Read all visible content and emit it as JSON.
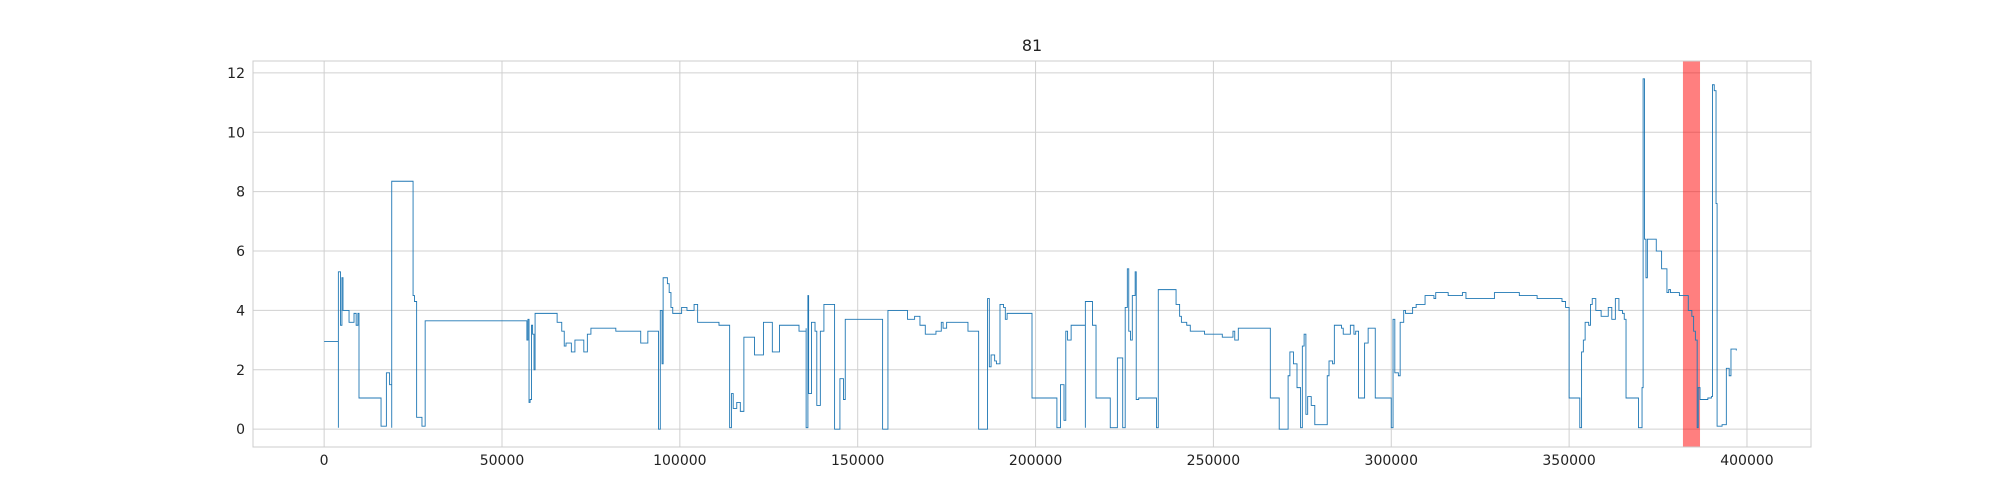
{
  "chart_data": {
    "type": "line",
    "title": "81",
    "xlabel": "",
    "ylabel": "",
    "xlim": [
      -20000,
      418000
    ],
    "ylim": [
      -0.6,
      12.4
    ],
    "xticks": [
      0,
      50000,
      100000,
      150000,
      200000,
      250000,
      300000,
      350000,
      400000
    ],
    "xtick_labels": [
      "0",
      "50000",
      "100000",
      "150000",
      "200000",
      "250000",
      "300000",
      "350000",
      "400000"
    ],
    "yticks": [
      0,
      2,
      4,
      6,
      8,
      10,
      12
    ],
    "ytick_labels": [
      "0",
      "2",
      "4",
      "6",
      "8",
      "10",
      "12"
    ],
    "grid": true,
    "colors": {
      "line": "#1f77b4",
      "highlight": "#ff0000",
      "grid": "#d0d0d0",
      "frame": "#cccccc"
    },
    "highlight_span": {
      "x0": 382000,
      "x1": 386800
    },
    "series": [
      {
        "values_step": [
          [
            0,
            2.95
          ],
          [
            4000,
            2.95
          ],
          [
            4000,
            0.05
          ],
          [
            4000,
            5.3
          ],
          [
            4600,
            3.5
          ],
          [
            5000,
            5.1
          ],
          [
            5300,
            4.0
          ],
          [
            7000,
            4.0
          ],
          [
            7000,
            3.6
          ],
          [
            8400,
            3.6
          ],
          [
            8400,
            3.9
          ],
          [
            9000,
            3.5
          ],
          [
            9500,
            3.9
          ],
          [
            9800,
            1.05
          ],
          [
            16000,
            1.05
          ],
          [
            16000,
            0.1
          ],
          [
            17500,
            0.1
          ],
          [
            17500,
            1.9
          ],
          [
            18400,
            1.5
          ],
          [
            19000,
            0.05
          ],
          [
            19000,
            8.35
          ],
          [
            25000,
            8.35
          ],
          [
            25000,
            4.5
          ],
          [
            25400,
            4.3
          ],
          [
            26000,
            0.4
          ],
          [
            27500,
            0.1
          ],
          [
            28400,
            0.1
          ],
          [
            28400,
            3.65
          ],
          [
            57000,
            3.65
          ],
          [
            57000,
            3.0
          ],
          [
            57300,
            3.7
          ],
          [
            57600,
            0.9
          ],
          [
            57900,
            1.0
          ],
          [
            58300,
            3.5
          ],
          [
            58600,
            3.2
          ],
          [
            59000,
            2.0
          ],
          [
            59300,
            3.9
          ],
          [
            65000,
            3.9
          ],
          [
            65500,
            3.6
          ],
          [
            66800,
            3.3
          ],
          [
            67500,
            2.8
          ],
          [
            68000,
            2.9
          ],
          [
            69000,
            2.9
          ],
          [
            69500,
            2.6
          ],
          [
            70500,
            3.0
          ],
          [
            72500,
            3.0
          ],
          [
            73000,
            2.6
          ],
          [
            74000,
            3.2
          ],
          [
            75000,
            3.4
          ],
          [
            80500,
            3.4
          ],
          [
            82000,
            3.3
          ],
          [
            89000,
            3.3
          ],
          [
            89000,
            2.9
          ],
          [
            91000,
            2.9
          ],
          [
            91000,
            3.3
          ],
          [
            94000,
            3.3
          ],
          [
            94000,
            0.0
          ],
          [
            94500,
            4.0
          ],
          [
            95000,
            2.2
          ],
          [
            95300,
            5.1
          ],
          [
            96500,
            4.9
          ],
          [
            97000,
            4.6
          ],
          [
            97500,
            4.1
          ],
          [
            98000,
            3.9
          ],
          [
            100000,
            3.9
          ],
          [
            100500,
            4.1
          ],
          [
            102000,
            4.0
          ],
          [
            104000,
            4.2
          ],
          [
            105000,
            3.6
          ],
          [
            111000,
            3.5
          ],
          [
            114000,
            3.5
          ],
          [
            114000,
            0.05
          ],
          [
            114500,
            1.2
          ],
          [
            115000,
            0.7
          ],
          [
            116000,
            0.9
          ],
          [
            117000,
            0.9
          ],
          [
            117000,
            0.6
          ],
          [
            118000,
            3.1
          ],
          [
            121000,
            3.1
          ],
          [
            121000,
            2.5
          ],
          [
            123500,
            2.5
          ],
          [
            123500,
            3.6
          ],
          [
            126000,
            3.6
          ],
          [
            126000,
            2.6
          ],
          [
            128000,
            2.6
          ],
          [
            128000,
            3.5
          ],
          [
            133500,
            3.3
          ],
          [
            135500,
            3.4
          ],
          [
            135500,
            0.05
          ],
          [
            136000,
            4.5
          ],
          [
            136200,
            1.2
          ],
          [
            137000,
            3.6
          ],
          [
            138000,
            3.3
          ],
          [
            138500,
            0.8
          ],
          [
            139500,
            3.3
          ],
          [
            140500,
            3.3
          ],
          [
            140500,
            4.2
          ],
          [
            143500,
            4.2
          ],
          [
            143500,
            0.0
          ],
          [
            145000,
            0.0
          ],
          [
            145000,
            1.7
          ],
          [
            146000,
            1.0
          ],
          [
            146500,
            1.0
          ],
          [
            146500,
            3.7
          ],
          [
            157000,
            3.7
          ],
          [
            157000,
            0.0
          ],
          [
            158500,
            0.0
          ],
          [
            158500,
            4.0
          ],
          [
            164000,
            4.0
          ],
          [
            164000,
            3.7
          ],
          [
            166000,
            3.8
          ],
          [
            167500,
            3.5
          ],
          [
            169000,
            3.5
          ],
          [
            169000,
            3.2
          ],
          [
            172000,
            3.3
          ],
          [
            173500,
            3.6
          ],
          [
            174000,
            3.4
          ],
          [
            175000,
            3.6
          ],
          [
            180000,
            3.6
          ],
          [
            181000,
            3.3
          ],
          [
            184000,
            3.3
          ],
          [
            184000,
            0.0
          ],
          [
            186500,
            0.1
          ],
          [
            186500,
            4.4
          ],
          [
            187000,
            2.1
          ],
          [
            187500,
            2.5
          ],
          [
            188500,
            2.3
          ],
          [
            189000,
            2.2
          ],
          [
            190000,
            2.2
          ],
          [
            190000,
            4.2
          ],
          [
            191000,
            4.1
          ],
          [
            191500,
            3.7
          ],
          [
            192000,
            3.9
          ],
          [
            199000,
            3.9
          ],
          [
            199000,
            1.05
          ],
          [
            206000,
            1.05
          ],
          [
            206000,
            0.05
          ],
          [
            207000,
            0.05
          ],
          [
            207000,
            1.5
          ],
          [
            208000,
            0.3
          ],
          [
            208500,
            3.3
          ],
          [
            209000,
            3.0
          ],
          [
            210000,
            3.5
          ],
          [
            214000,
            3.5
          ],
          [
            214000,
            0.05
          ],
          [
            214000,
            4.3
          ],
          [
            216000,
            4.3
          ],
          [
            216000,
            3.5
          ],
          [
            217000,
            3.5
          ],
          [
            217000,
            1.05
          ],
          [
            221000,
            1.05
          ],
          [
            221000,
            0.05
          ],
          [
            223000,
            0.05
          ],
          [
            223000,
            2.4
          ],
          [
            224500,
            2.4
          ],
          [
            224500,
            0.05
          ],
          [
            225200,
            4.1
          ],
          [
            225800,
            5.4
          ],
          [
            226200,
            3.3
          ],
          [
            226700,
            3.0
          ],
          [
            227200,
            4.5
          ],
          [
            228000,
            5.3
          ],
          [
            228300,
            1.0
          ],
          [
            229000,
            1.05
          ],
          [
            234000,
            1.05
          ],
          [
            234000,
            0.05
          ],
          [
            234500,
            4.7
          ],
          [
            239000,
            4.7
          ],
          [
            239500,
            4.2
          ],
          [
            240500,
            3.8
          ],
          [
            241000,
            3.6
          ],
          [
            242500,
            3.5
          ],
          [
            243500,
            3.3
          ],
          [
            247000,
            3.3
          ],
          [
            247500,
            3.2
          ],
          [
            252000,
            3.2
          ],
          [
            252500,
            3.1
          ],
          [
            255000,
            3.1
          ],
          [
            255500,
            3.3
          ],
          [
            256000,
            3.0
          ],
          [
            257000,
            3.4
          ],
          [
            266000,
            3.4
          ],
          [
            266000,
            1.05
          ],
          [
            268500,
            1.05
          ],
          [
            268500,
            0.0
          ],
          [
            271000,
            0.0
          ],
          [
            271000,
            1.8
          ],
          [
            271500,
            2.6
          ],
          [
            272500,
            2.2
          ],
          [
            273500,
            1.4
          ],
          [
            274500,
            1.4
          ],
          [
            274500,
            0.05
          ],
          [
            275000,
            2.8
          ],
          [
            275500,
            3.2
          ],
          [
            276000,
            0.5
          ],
          [
            276500,
            1.1
          ],
          [
            277500,
            0.8
          ],
          [
            278500,
            0.15
          ],
          [
            282000,
            0.15
          ],
          [
            282000,
            1.8
          ],
          [
            282500,
            2.3
          ],
          [
            283500,
            2.2
          ],
          [
            284000,
            3.5
          ],
          [
            286000,
            3.4
          ],
          [
            286500,
            3.2
          ],
          [
            288500,
            3.5
          ],
          [
            289500,
            3.2
          ],
          [
            290000,
            3.3
          ],
          [
            290800,
            1.05
          ],
          [
            292500,
            2.9
          ],
          [
            293500,
            3.4
          ],
          [
            295500,
            3.4
          ],
          [
            295500,
            1.05
          ],
          [
            300000,
            1.05
          ],
          [
            300000,
            0.05
          ],
          [
            300500,
            3.7
          ],
          [
            301000,
            1.9
          ],
          [
            302000,
            1.8
          ],
          [
            302500,
            3.6
          ],
          [
            303500,
            4.0
          ],
          [
            304000,
            3.9
          ],
          [
            306000,
            4.1
          ],
          [
            307000,
            4.2
          ],
          [
            309000,
            4.2
          ],
          [
            309500,
            4.5
          ],
          [
            311000,
            4.5
          ],
          [
            312000,
            4.4
          ],
          [
            312500,
            4.6
          ],
          [
            316000,
            4.5
          ],
          [
            319000,
            4.5
          ],
          [
            320000,
            4.6
          ],
          [
            321000,
            4.4
          ],
          [
            328000,
            4.4
          ],
          [
            329000,
            4.6
          ],
          [
            335000,
            4.6
          ],
          [
            336000,
            4.5
          ],
          [
            340000,
            4.5
          ],
          [
            341000,
            4.4
          ],
          [
            347000,
            4.4
          ],
          [
            348000,
            4.3
          ],
          [
            349000,
            4.1
          ],
          [
            350000,
            4.1
          ],
          [
            350000,
            1.05
          ],
          [
            353000,
            1.05
          ],
          [
            353000,
            0.05
          ],
          [
            353500,
            2.6
          ],
          [
            354000,
            3.0
          ],
          [
            354500,
            3.6
          ],
          [
            355500,
            3.5
          ],
          [
            356000,
            4.2
          ],
          [
            356500,
            4.4
          ],
          [
            357500,
            4.0
          ],
          [
            359000,
            3.8
          ],
          [
            361000,
            4.1
          ],
          [
            362000,
            3.7
          ],
          [
            363000,
            4.4
          ],
          [
            364000,
            4.0
          ],
          [
            365000,
            3.9
          ],
          [
            365500,
            3.7
          ],
          [
            366000,
            1.05
          ],
          [
            369500,
            1.05
          ],
          [
            369500,
            0.05
          ],
          [
            370500,
            1.4
          ],
          [
            370800,
            11.8
          ],
          [
            371200,
            6.4
          ],
          [
            371600,
            5.1
          ],
          [
            372000,
            6.4
          ],
          [
            374500,
            6.4
          ],
          [
            374500,
            6.0
          ],
          [
            376000,
            6.0
          ],
          [
            376000,
            5.4
          ],
          [
            377500,
            5.4
          ],
          [
            377500,
            4.6
          ],
          [
            378000,
            4.7
          ],
          [
            378500,
            4.6
          ],
          [
            381000,
            4.6
          ],
          [
            381000,
            4.5
          ],
          [
            382500,
            4.5
          ],
          [
            383500,
            4.0
          ],
          [
            384500,
            3.8
          ],
          [
            385000,
            3.3
          ],
          [
            385500,
            3.0
          ],
          [
            386000,
            0.05
          ],
          [
            386300,
            1.4
          ],
          [
            386800,
            1.0
          ],
          [
            387000,
            1.0
          ],
          [
            389000,
            1.05
          ],
          [
            390000,
            1.1
          ],
          [
            390300,
            11.6
          ],
          [
            390800,
            11.4
          ],
          [
            391300,
            7.6
          ],
          [
            391600,
            0.1
          ],
          [
            392500,
            0.1
          ],
          [
            393000,
            0.15
          ],
          [
            394000,
            0.15
          ],
          [
            394200,
            2.05
          ],
          [
            395000,
            1.8
          ],
          [
            395500,
            2.7
          ],
          [
            397000,
            2.65
          ]
        ]
      }
    ]
  }
}
